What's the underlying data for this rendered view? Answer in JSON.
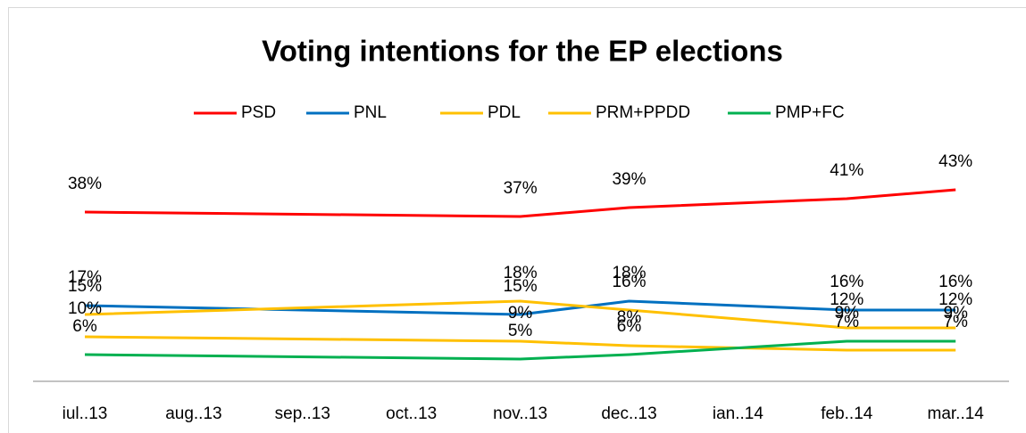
{
  "chart_data": {
    "type": "line",
    "title": "Voting intentions for the EP elections",
    "categories": [
      "iul..13",
      "aug..13",
      "sep..13",
      "oct..13",
      "nov..13",
      "dec..13",
      "ian..14",
      "feb..14",
      "mar..14"
    ],
    "connect_gaps": true,
    "series": [
      {
        "name": "PSD",
        "color": "#ff0000",
        "values": [
          38,
          null,
          null,
          null,
          37,
          39,
          null,
          41,
          43
        ],
        "value_labels": [
          "38%",
          null,
          null,
          null,
          "37%",
          "39%",
          null,
          "41%",
          "43%"
        ]
      },
      {
        "name": "PNL",
        "color": "#0070c0",
        "values": [
          17,
          null,
          null,
          null,
          15,
          18,
          null,
          16,
          16
        ],
        "value_labels": [
          "17%",
          null,
          null,
          null,
          "15%",
          "18%",
          null,
          "16%",
          "16%"
        ]
      },
      {
        "name": "PDL",
        "color": "#ffc000",
        "values": [
          15,
          null,
          null,
          null,
          18,
          16,
          null,
          12,
          12
        ],
        "value_labels": [
          "15%",
          null,
          null,
          null,
          "18%",
          "16%",
          null,
          "12%",
          "12%"
        ]
      },
      {
        "name": "PRM+PPDD",
        "color": "#ffc000",
        "values": [
          10,
          null,
          null,
          null,
          9,
          8,
          null,
          7,
          7
        ],
        "value_labels": [
          "10%",
          null,
          null,
          null,
          "9%",
          "8%",
          null,
          "7%",
          "7%"
        ]
      },
      {
        "name": "PMP+FC",
        "color": "#00b050",
        "values": [
          6,
          null,
          null,
          null,
          5,
          6,
          null,
          9,
          9
        ],
        "value_labels": [
          "6%",
          null,
          null,
          null,
          "5%",
          "6%",
          null,
          "9%",
          "9%"
        ]
      }
    ],
    "ylim": [
      0,
      80.8
    ]
  }
}
